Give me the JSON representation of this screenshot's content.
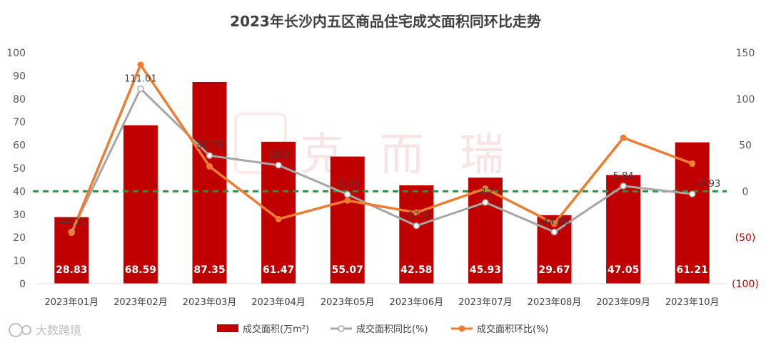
{
  "chart_data": {
    "type": "bar",
    "title": "2023年长沙内五区商品住宅成交面积同环比走势",
    "categories": [
      "2023年01月",
      "2023年02月",
      "2023年03月",
      "2023年04月",
      "2023年05月",
      "2023年06月",
      "2023年07月",
      "2023年08月",
      "2023年09月",
      "2023年10月"
    ],
    "series": [
      {
        "name": "成交面积(万m²)",
        "type": "bar",
        "axis": "left",
        "color": "#c00000",
        "values": [
          28.83,
          68.59,
          87.35,
          61.47,
          55.07,
          42.58,
          45.93,
          29.67,
          47.05,
          61.21
        ],
        "labels": [
          "28.83",
          "68.59",
          "87.35",
          "61.47",
          "55.07",
          "42.58",
          "45.93",
          "29.67",
          "47.05",
          "61.21"
        ]
      },
      {
        "name": "成交面积同比(%)",
        "type": "line",
        "axis": "right",
        "color": "#a6a6a6",
        "values": [
          -44.11,
          111.01,
          38.73,
          28.3,
          -3.33,
          -37.3,
          -12.0,
          -44.06,
          5.84,
          -2.93
        ],
        "labels": [
          "-44.11",
          "111.01",
          "38.73",
          "28.3",
          "-3.33",
          "-37.3",
          "-12",
          "-44.06",
          "5.84",
          "-2.93"
        ]
      },
      {
        "name": "成交面积环比(%)",
        "type": "line",
        "axis": "right",
        "color": "#ed7d31",
        "values": [
          -45.0,
          137.0,
          27.0,
          -30.0,
          -10.0,
          -23.0,
          3.0,
          -35.0,
          58.0,
          30.0
        ]
      }
    ],
    "left_axis": {
      "ylim": [
        0,
        100
      ],
      "ticks": [
        "0",
        "10",
        "20",
        "30",
        "40",
        "50",
        "60",
        "70",
        "80",
        "90",
        "100"
      ]
    },
    "right_axis": {
      "ylim": [
        -100,
        150
      ],
      "ticks": [
        "(100)",
        "(50)",
        "0",
        "50",
        "100",
        "150"
      ]
    },
    "reference_line": {
      "axis": "right",
      "value": 0,
      "color": "#1a9a3c",
      "style": "dashed"
    },
    "legend": {
      "position": "bottom",
      "items": [
        "成交面积(万m²)",
        "成交面积同比(%)",
        "成交面积环比(%)"
      ]
    }
  },
  "watermark": {
    "text": "克而瑞"
  },
  "footer_logo": {
    "text": "大数跨境"
  }
}
